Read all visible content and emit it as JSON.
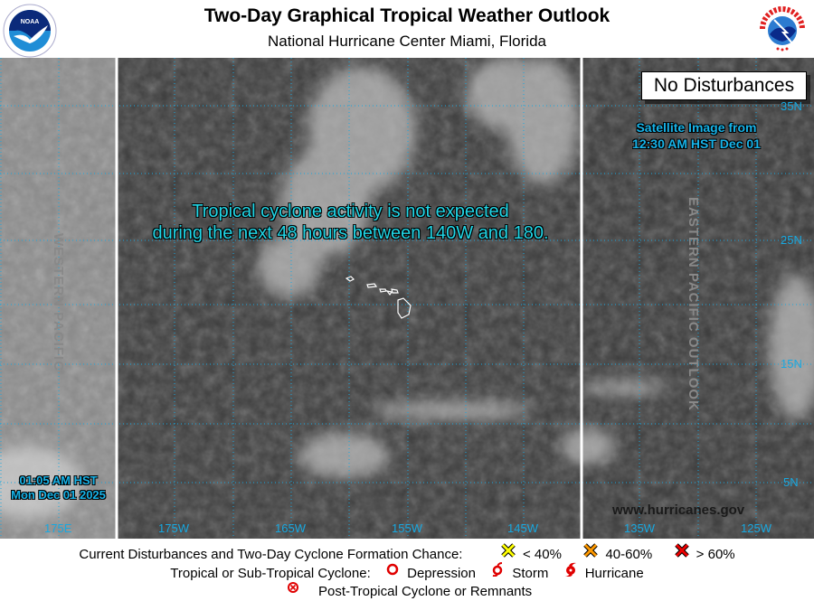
{
  "header": {
    "title": "Two-Day Graphical Tropical Weather Outlook",
    "subtitle": "National Hurricane Center  Miami, Florida",
    "left_logo": "NOAA",
    "right_logo": "NATIONAL WEATHER SERVICE"
  },
  "map": {
    "status_box": "No Disturbances",
    "message_line1": "Tropical cyclone activity is not expected",
    "message_line2": "during the next 48 hours between 140W and 180.",
    "satellite_line1": "Satellite Image from",
    "satellite_line2": "12:30 AM HST Dec 01",
    "issued_line1": "01:05 AM HST",
    "issued_line2": "Mon Dec 01 2025",
    "western_label": "WESTERN PACIFIC",
    "eastern_label": "EASTERN PACIFIC OUTLOOK",
    "website": "www.hurricanes.gov",
    "longitude_labels": [
      "175E",
      "175W",
      "165W",
      "155W",
      "145W",
      "135W",
      "125W"
    ],
    "latitude_labels": [
      "35N",
      "25N",
      "15N",
      "5N"
    ],
    "colors": {
      "grid": "#18a8e0",
      "text_overlay": "#17b3e8",
      "message": "#21d6e6"
    }
  },
  "legend": {
    "row1_label": "Current Disturbances and Two-Day Cyclone Formation Chance:",
    "low": "< 40%",
    "medium": "40-60%",
    "high": "> 60%",
    "row2_label": "Tropical or Sub-Tropical Cyclone:",
    "depression": "Depression",
    "storm": "Storm",
    "hurricane": "Hurricane",
    "post_tropical": "Post-Tropical Cyclone or Remnants",
    "colors": {
      "low": "#ffff00",
      "medium": "#ff9900",
      "high": "#ee0000",
      "cyclone": "#e00000"
    }
  }
}
